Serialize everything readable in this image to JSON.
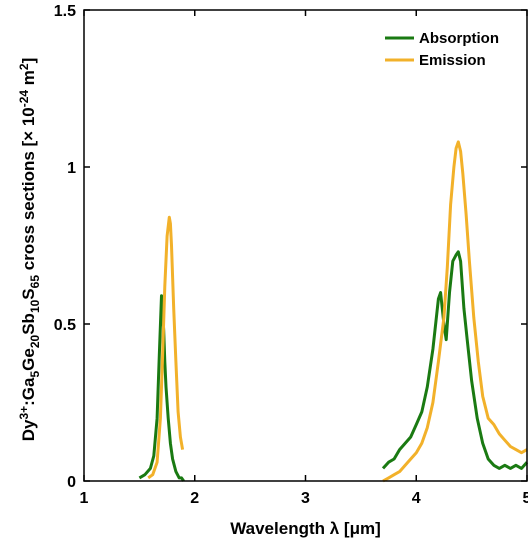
{
  "chart_data": {
    "type": "line",
    "xlabel": "Wavelength λ [μm]",
    "ylabel": {
      "parts": [
        {
          "text": "Dy",
          "shift": 0
        },
        {
          "text": "3+",
          "shift": "sup"
        },
        {
          "text": ":Ga",
          "shift": 0
        },
        {
          "text": "5",
          "shift": "sub"
        },
        {
          "text": "Ge",
          "shift": 0
        },
        {
          "text": "20",
          "shift": "sub"
        },
        {
          "text": "Sb",
          "shift": 0
        },
        {
          "text": "10",
          "shift": "sub"
        },
        {
          "text": "S",
          "shift": 0
        },
        {
          "text": "65",
          "shift": "sub"
        },
        {
          "text": " cross sections [× 10",
          "shift": 0
        },
        {
          "text": "-24",
          "shift": "sup"
        },
        {
          "text": " m",
          "shift": 0
        },
        {
          "text": "2",
          "shift": "sup"
        },
        {
          "text": "]",
          "shift": 0
        }
      ]
    },
    "xlim": [
      1,
      5
    ],
    "ylim": [
      0,
      1.5
    ],
    "xticks": [
      1,
      2,
      3,
      4,
      5
    ],
    "yticks": [
      0,
      0.5,
      1,
      1.5
    ],
    "xticklabels": [
      "1",
      "2",
      "3",
      "4",
      "5"
    ],
    "yticklabels": [
      "0",
      "0.5",
      "1",
      "1.5"
    ],
    "legend_position": "top-right",
    "grid": false,
    "series": [
      {
        "name": "Absorption",
        "color": "#1a7a12",
        "x": [
          1.5,
          1.55,
          1.6,
          1.63,
          1.66,
          1.68,
          1.7,
          1.71,
          1.72,
          1.73,
          1.74,
          1.76,
          1.78,
          1.8,
          1.83,
          1.86,
          1.88,
          1.9,
          3.7,
          3.75,
          3.8,
          3.85,
          3.9,
          3.95,
          4.0,
          4.05,
          4.1,
          4.15,
          4.2,
          4.22,
          4.25,
          4.27,
          4.3,
          4.33,
          4.36,
          4.38,
          4.4,
          4.43,
          4.46,
          4.5,
          4.55,
          4.6,
          4.65,
          4.7,
          4.75,
          4.8,
          4.85,
          4.9,
          4.95,
          5.0
        ],
        "y": [
          0.01,
          0.02,
          0.04,
          0.08,
          0.2,
          0.4,
          0.59,
          0.54,
          0.48,
          0.38,
          0.3,
          0.2,
          0.12,
          0.07,
          0.03,
          0.01,
          0.01,
          0.0,
          0.04,
          0.06,
          0.07,
          0.1,
          0.12,
          0.14,
          0.18,
          0.22,
          0.3,
          0.42,
          0.58,
          0.6,
          0.5,
          0.45,
          0.6,
          0.7,
          0.72,
          0.73,
          0.7,
          0.55,
          0.45,
          0.32,
          0.2,
          0.12,
          0.07,
          0.05,
          0.04,
          0.05,
          0.04,
          0.05,
          0.04,
          0.06
        ]
      },
      {
        "name": "Emission",
        "color": "#f2b12a",
        "x": [
          1.58,
          1.62,
          1.66,
          1.69,
          1.71,
          1.73,
          1.75,
          1.77,
          1.78,
          1.79,
          1.81,
          1.83,
          1.85,
          1.87,
          1.89,
          3.7,
          3.75,
          3.8,
          3.85,
          3.9,
          3.95,
          4.0,
          4.05,
          4.1,
          4.15,
          4.2,
          4.25,
          4.28,
          4.31,
          4.34,
          4.36,
          4.38,
          4.4,
          4.42,
          4.45,
          4.48,
          4.52,
          4.56,
          4.6,
          4.65,
          4.7,
          4.75,
          4.8,
          4.85,
          4.9,
          4.95,
          5.0
        ],
        "y": [
          0.01,
          0.02,
          0.06,
          0.2,
          0.4,
          0.62,
          0.78,
          0.84,
          0.82,
          0.75,
          0.55,
          0.38,
          0.22,
          0.14,
          0.1,
          0.0,
          0.01,
          0.02,
          0.03,
          0.05,
          0.07,
          0.09,
          0.12,
          0.17,
          0.25,
          0.38,
          0.52,
          0.68,
          0.88,
          1.0,
          1.06,
          1.08,
          1.05,
          0.98,
          0.85,
          0.7,
          0.52,
          0.38,
          0.27,
          0.2,
          0.18,
          0.15,
          0.13,
          0.11,
          0.1,
          0.09,
          0.1
        ]
      }
    ]
  }
}
